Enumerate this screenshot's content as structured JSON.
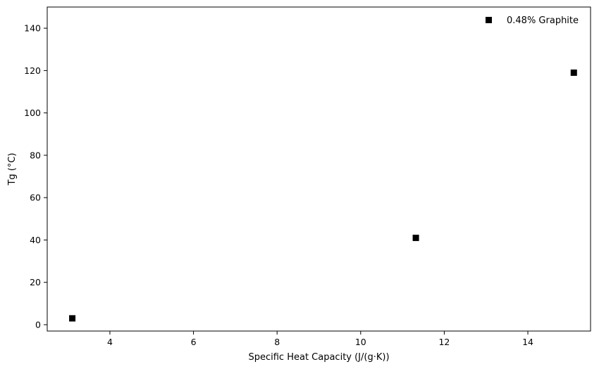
{
  "chart_data": {
    "type": "scatter",
    "title": "",
    "xlabel": "Specific Heat Capacity (J/(g·K))",
    "ylabel": "Tg (°C)",
    "xlim": [
      2.5,
      15.5
    ],
    "ylim": [
      -3,
      150
    ],
    "xticks": [
      4,
      6,
      8,
      10,
      12,
      14
    ],
    "yticks": [
      0,
      20,
      40,
      60,
      80,
      100,
      120,
      140
    ],
    "grid": false,
    "legend": {
      "placement": "top-right",
      "entries": [
        "0.48% Graphite"
      ]
    },
    "series": [
      {
        "name": "0.48% Graphite",
        "marker": "square",
        "color": "#000000",
        "points": [
          {
            "x": 3.1,
            "y": 3
          },
          {
            "x": 11.32,
            "y": 41
          },
          {
            "x": 15.1,
            "y": 119
          }
        ]
      }
    ]
  }
}
